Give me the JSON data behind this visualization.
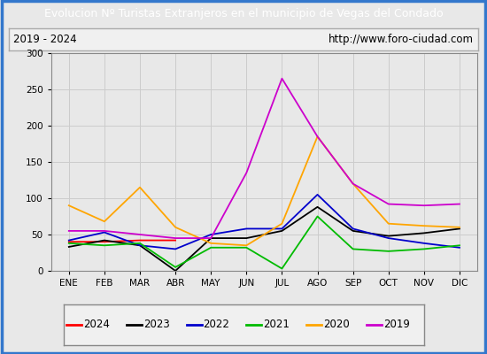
{
  "title": "Evolucion Nº Turistas Extranjeros en el municipio de Vegas del Condado",
  "subtitle_left": "2019 - 2024",
  "subtitle_right": "http://www.foro-ciudad.com",
  "months": [
    "ENE",
    "FEB",
    "MAR",
    "ABR",
    "MAY",
    "JUN",
    "JUL",
    "AGO",
    "SEP",
    "OCT",
    "NOV",
    "DIC"
  ],
  "series": {
    "2024": [
      40,
      40,
      42,
      42,
      null,
      null,
      null,
      null,
      null,
      null,
      null,
      null
    ],
    "2023": [
      33,
      42,
      35,
      0,
      45,
      45,
      55,
      88,
      55,
      48,
      52,
      58
    ],
    "2022": [
      42,
      53,
      35,
      30,
      50,
      58,
      58,
      105,
      58,
      45,
      38,
      32
    ],
    "2021": [
      38,
      35,
      38,
      5,
      32,
      32,
      3,
      75,
      30,
      27,
      30,
      35
    ],
    "2020": [
      90,
      68,
      115,
      60,
      38,
      35,
      65,
      185,
      120,
      65,
      62,
      60
    ],
    "2019": [
      55,
      55,
      50,
      45,
      45,
      135,
      265,
      185,
      120,
      92,
      90,
      92
    ]
  },
  "colors": {
    "2024": "#ff0000",
    "2023": "#000000",
    "2022": "#0000cc",
    "2021": "#00bb00",
    "2020": "#ffa500",
    "2019": "#cc00cc"
  },
  "ylim": [
    0,
    300
  ],
  "yticks": [
    0,
    50,
    100,
    150,
    200,
    250,
    300
  ],
  "background_color": "#e8e8e8",
  "plot_background": "#e8e8e8",
  "title_bg": "#3377cc",
  "title_color": "#ffffff",
  "subtitle_bg": "#f0f0f0",
  "border_color": "#3377cc",
  "legend_bg": "#f0f0f0"
}
